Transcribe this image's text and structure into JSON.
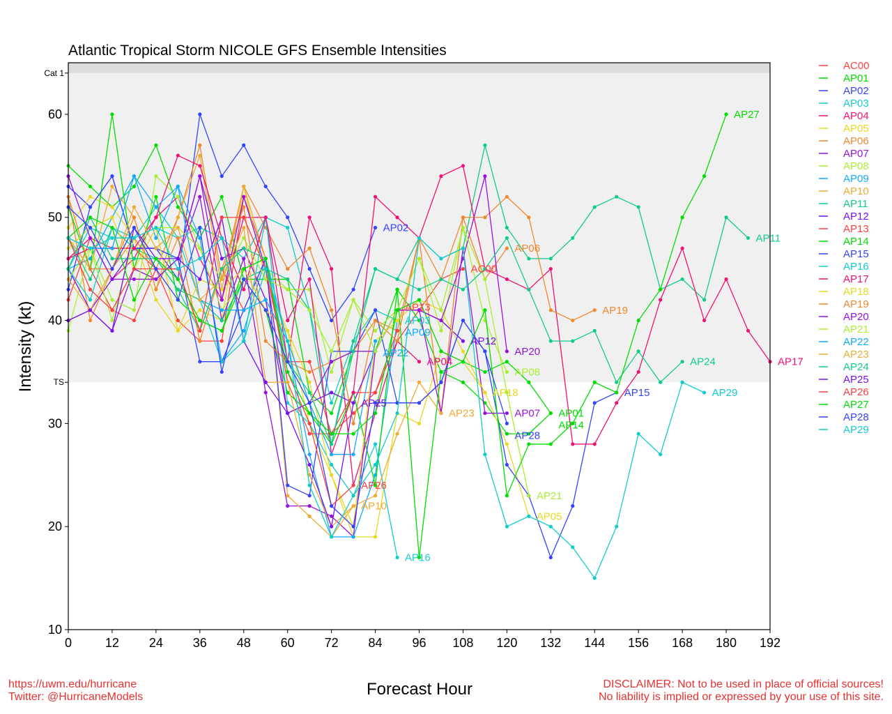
{
  "chart_data": {
    "type": "line",
    "title": "Atlantic Tropical Storm NICOLE GFS Ensemble Intensities",
    "xlabel": "Forecast Hour",
    "ylabel": "Intensity (kt)",
    "xlim": [
      0,
      192
    ],
    "ylim": [
      10,
      65
    ],
    "x_step_hours": 6,
    "xticks": [
      0,
      12,
      24,
      36,
      48,
      60,
      72,
      84,
      96,
      108,
      120,
      132,
      144,
      156,
      168,
      180,
      192
    ],
    "yticks": [
      10,
      20,
      30,
      40,
      50,
      60
    ],
    "thresholds": [
      {
        "label": "TS",
        "value": 34
      },
      {
        "label": "Cat 1",
        "value": 64
      }
    ],
    "band_colors": {
      "ts_to_cat1": "#f0f0f0",
      "above_cat1": "#dcdcdc"
    },
    "legend_placement": "right",
    "grid": false,
    "series": [
      {
        "name": "AC00",
        "color": "#ff4040",
        "values": [
          48,
          45,
          41,
          40,
          45,
          40,
          38,
          38,
          52,
          46,
          36,
          36,
          29,
          31,
          33,
          38,
          41,
          44,
          45
        ]
      },
      {
        "name": "AP01",
        "color": "#00dd00",
        "values": [
          55,
          53,
          51,
          53,
          57,
          51,
          48,
          52,
          44,
          44,
          44,
          33,
          31,
          37,
          37,
          43,
          40,
          35,
          34,
          32,
          29,
          29,
          31
        ]
      },
      {
        "name": "AP02",
        "color": "#3344ff",
        "values": [
          53,
          51,
          54,
          47,
          47,
          44,
          60,
          54,
          57,
          53,
          50,
          45,
          40,
          43,
          49
        ]
      },
      {
        "name": "AP03",
        "color": "#11cccc",
        "values": [
          45,
          49,
          48,
          48,
          51,
          48,
          49,
          48,
          46,
          50,
          49,
          41,
          32,
          38,
          41,
          40
        ]
      },
      {
        "name": "AP04",
        "color": "#ee1177",
        "values": [
          46,
          48,
          44,
          46,
          50,
          52,
          46,
          42,
          50,
          50,
          36,
          50,
          45,
          24,
          31,
          38,
          36
        ]
      },
      {
        "name": "AP05",
        "color": "#e8d820",
        "values": [
          49,
          52,
          51,
          48,
          42,
          39,
          41,
          40,
          53,
          44,
          39,
          30,
          25,
          19,
          19,
          31,
          30,
          37,
          36,
          33,
          28,
          21
        ]
      },
      {
        "name": "AP06",
        "color": "#f08830",
        "values": [
          52,
          40,
          45,
          48,
          45,
          50,
          57,
          44,
          53,
          49,
          45,
          47,
          41,
          30,
          40,
          39,
          48,
          31,
          50,
          44,
          47
        ]
      },
      {
        "name": "AP07",
        "color": "#9911dd",
        "values": [
          40,
          41,
          39,
          45,
          44,
          46,
          52,
          40,
          46,
          33,
          22,
          22,
          21,
          19,
          37,
          41,
          41,
          31,
          47,
          31,
          31
        ]
      },
      {
        "name": "AP08",
        "color": "#aaee33",
        "values": [
          39,
          47,
          42,
          41,
          54,
          52,
          47,
          41,
          44,
          45,
          43,
          43,
          35,
          42,
          39,
          41,
          46,
          39,
          49,
          40,
          35
        ]
      },
      {
        "name": "AP09",
        "color": "#11aaff",
        "values": [
          45,
          46,
          50,
          54,
          48,
          53,
          48,
          36,
          39,
          46,
          38,
          27,
          19,
          19,
          25,
          40
        ]
      },
      {
        "name": "AP10",
        "color": "#eeaa33",
        "values": [
          48,
          45,
          53,
          50,
          43,
          50,
          56,
          43,
          53,
          46,
          23,
          21,
          19,
          22
        ]
      },
      {
        "name": "AP11",
        "color": "#11cc88",
        "values": [
          48,
          44,
          49,
          47,
          46,
          43,
          42,
          40,
          44,
          45,
          44,
          41,
          28,
          38,
          45,
          44,
          48,
          46,
          47,
          57,
          49,
          46,
          46,
          48,
          51,
          52,
          51,
          43,
          44,
          42,
          50,
          48
        ]
      },
      {
        "name": "AP12",
        "color": "#7711ee",
        "values": [
          45,
          41,
          44,
          47,
          47,
          46,
          54,
          46,
          47,
          42,
          31,
          32,
          33,
          32,
          37,
          41,
          41,
          40,
          38
        ]
      },
      {
        "name": "AP13",
        "color": "#ff4040",
        "values": [
          42,
          48,
          47,
          47,
          45,
          45,
          39,
          45,
          41,
          46,
          34,
          29,
          29,
          33,
          33,
          39
        ]
      },
      {
        "name": "AP14",
        "color": "#00dd00",
        "values": [
          51,
          45,
          60,
          45,
          52,
          42,
          40,
          39,
          44,
          41,
          33,
          31,
          28,
          33,
          24,
          43,
          17,
          35,
          36,
          35,
          36,
          34,
          31
        ]
      },
      {
        "name": "AP15",
        "color": "#3344ff",
        "values": [
          43,
          51,
          54,
          47,
          47,
          46,
          36,
          36,
          41,
          46,
          24,
          23,
          37,
          37,
          41,
          32,
          32,
          34,
          40,
          37,
          26,
          23,
          17,
          22,
          32,
          33
        ]
      },
      {
        "name": "AP16",
        "color": "#11cccc",
        "values": [
          45,
          42,
          49,
          48,
          49,
          48,
          42,
          36,
          38,
          50,
          32,
          30,
          26,
          23,
          28,
          17
        ]
      },
      {
        "name": "AP17",
        "color": "#ee1177",
        "values": [
          46,
          47,
          47,
          47,
          50,
          56,
          55,
          48,
          43,
          50,
          40,
          44,
          27,
          33,
          52,
          50,
          48,
          54,
          55,
          45,
          44,
          43,
          45,
          28,
          28,
          32,
          35,
          42,
          47,
          40,
          44,
          39,
          36
        ]
      },
      {
        "name": "AP18",
        "color": "#e8d820",
        "values": [
          47,
          49,
          50,
          45,
          49,
          39,
          44,
          43,
          45,
          41,
          39,
          34,
          25,
          20,
          38,
          40,
          42,
          41,
          37,
          33
        ]
      },
      {
        "name": "AP19",
        "color": "#f08830",
        "values": [
          52,
          45,
          45,
          50,
          43,
          48,
          38,
          45,
          51,
          38,
          36,
          35,
          36,
          37,
          40,
          38,
          48,
          44,
          50,
          50,
          52,
          50,
          41,
          40,
          41
        ]
      },
      {
        "name": "AP20",
        "color": "#9911dd",
        "values": [
          54,
          48,
          44,
          44,
          44,
          46,
          54,
          42,
          52,
          45,
          31,
          32,
          36,
          37,
          37,
          41,
          41,
          40,
          46,
          54,
          37
        ]
      },
      {
        "name": "AP21",
        "color": "#aaee33",
        "values": [
          44,
          47,
          40,
          48,
          49,
          49,
          47,
          44,
          48,
          44,
          43,
          41,
          37,
          42,
          37,
          41,
          46,
          41,
          49,
          44,
          33,
          23
        ]
      },
      {
        "name": "AP22",
        "color": "#11aaff",
        "values": [
          48,
          47,
          47,
          54,
          51,
          53,
          42,
          41,
          41,
          42,
          38,
          32,
          27,
          27,
          38
        ]
      },
      {
        "name": "AP23",
        "color": "#eeaa33",
        "values": [
          44,
          41,
          45,
          51,
          47,
          49,
          42,
          44,
          49,
          34,
          34,
          25,
          20,
          22,
          23,
          29,
          34,
          31
        ]
      },
      {
        "name": "AP24",
        "color": "#11cc88",
        "values": [
          45,
          50,
          46,
          46,
          46,
          43,
          39,
          45,
          47,
          46,
          36,
          33,
          28,
          37,
          45,
          44,
          43,
          44,
          43,
          45,
          48,
          43,
          38,
          38,
          39,
          34,
          37,
          34,
          36
        ]
      },
      {
        "name": "AP25",
        "color": "#7711ee",
        "values": [
          40,
          41,
          39,
          49,
          46,
          46,
          44,
          50,
          38,
          34,
          31,
          26,
          20,
          32
        ]
      },
      {
        "name": "AP26",
        "color": "#ff4040",
        "values": [
          48,
          43,
          41,
          45,
          45,
          45,
          39,
          50,
          50,
          45,
          35,
          30,
          22,
          24
        ]
      },
      {
        "name": "AP27",
        "color": "#00dd00",
        "values": [
          48,
          50,
          49,
          42,
          46,
          44,
          40,
          39,
          45,
          46,
          35,
          31,
          29,
          29,
          31,
          41,
          42,
          37,
          36,
          41,
          23,
          28,
          28,
          30,
          34,
          33,
          40,
          43,
          50,
          54,
          60
        ]
      },
      {
        "name": "AP28",
        "color": "#3344ff",
        "values": [
          51,
          49,
          45,
          49,
          45,
          42,
          49,
          35,
          44,
          41,
          36,
          32,
          22,
          20,
          32,
          32,
          32,
          34,
          40,
          37,
          30
        ]
      },
      {
        "name": "AP29",
        "color": "#11cccc",
        "values": [
          48,
          47,
          48,
          48,
          49,
          45,
          46,
          48,
          38,
          45,
          38,
          24,
          19,
          23,
          26,
          31,
          48,
          46,
          47,
          27,
          20,
          21,
          20,
          18,
          15,
          20,
          29,
          27,
          34,
          33
        ]
      }
    ]
  },
  "footer": {
    "left_line1": "https://uwm.edu/hurricane",
    "left_line2": "Twitter: @HurricaneModels",
    "right_line1": "DISCLAIMER: Not to be used in place of official sources!",
    "right_line2": "No liability is implied or expressed by your use of this site.",
    "color": "#e83030"
  }
}
